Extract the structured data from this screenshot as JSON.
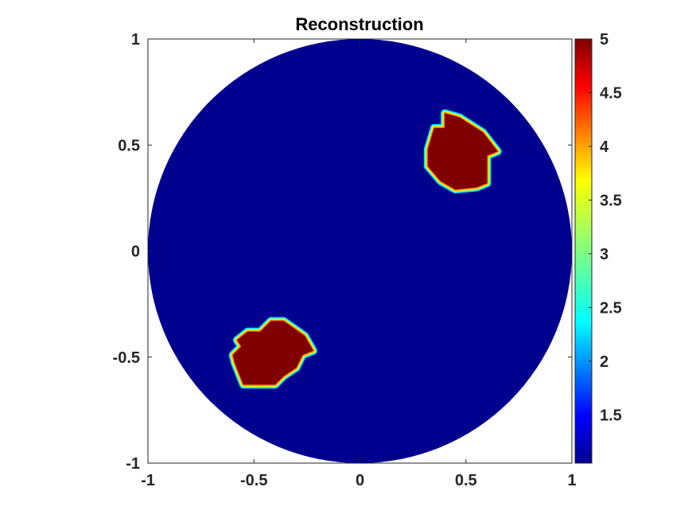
{
  "chart_data": {
    "type": "heatmap",
    "title": "Reconstruction",
    "xlabel": "",
    "ylabel": "",
    "xlim": [
      -1,
      1
    ],
    "ylim": [
      -1,
      1
    ],
    "x_ticks": [
      "-1",
      "-0.5",
      "0",
      "0.5",
      "1"
    ],
    "y_ticks": [
      "1",
      "0.5",
      "0",
      "-0.5",
      "-1"
    ],
    "x_tick_values": [
      -1,
      -0.5,
      0,
      0.5,
      1
    ],
    "y_tick_values": [
      1,
      0.5,
      0,
      -0.5,
      -1
    ],
    "grid": false,
    "colormap": "jet",
    "colorbar": {
      "range": [
        1.05,
        5
      ],
      "ticks": [
        "5",
        "4.5",
        "4",
        "3.5",
        "3",
        "2.5",
        "2",
        "1.5"
      ],
      "tick_values": [
        5,
        4.5,
        4,
        3.5,
        3,
        2.5,
        2,
        1.5
      ]
    },
    "domain": {
      "shape": "disk",
      "center": [
        0,
        0
      ],
      "radius": 1,
      "background_value": 1.05
    },
    "inclusions": [
      {
        "value": 5,
        "polygon": [
          [
            0.4,
            0.65
          ],
          [
            0.47,
            0.63
          ],
          [
            0.58,
            0.56
          ],
          [
            0.65,
            0.47
          ],
          [
            0.6,
            0.45
          ],
          [
            0.6,
            0.32
          ],
          [
            0.55,
            0.3
          ],
          [
            0.45,
            0.29
          ],
          [
            0.38,
            0.33
          ],
          [
            0.32,
            0.4
          ],
          [
            0.32,
            0.48
          ],
          [
            0.35,
            0.58
          ],
          [
            0.4,
            0.58
          ]
        ]
      },
      {
        "value": 5,
        "polygon": [
          [
            -0.42,
            -0.33
          ],
          [
            -0.36,
            -0.33
          ],
          [
            -0.26,
            -0.4
          ],
          [
            -0.22,
            -0.47
          ],
          [
            -0.27,
            -0.49
          ],
          [
            -0.3,
            -0.55
          ],
          [
            -0.36,
            -0.59
          ],
          [
            -0.4,
            -0.63
          ],
          [
            -0.55,
            -0.63
          ],
          [
            -0.59,
            -0.53
          ],
          [
            -0.6,
            -0.49
          ],
          [
            -0.56,
            -0.45
          ],
          [
            -0.58,
            -0.42
          ],
          [
            -0.53,
            -0.38
          ],
          [
            -0.47,
            -0.38
          ]
        ]
      }
    ]
  },
  "colors": {
    "axis": "#262626",
    "plot_bg": "#ffffff",
    "colormap_stops": [
      "#00008f",
      "#0000ff",
      "#0080ff",
      "#00ffff",
      "#80ff80",
      "#ffff00",
      "#ff8000",
      "#ff0000",
      "#800000"
    ]
  }
}
